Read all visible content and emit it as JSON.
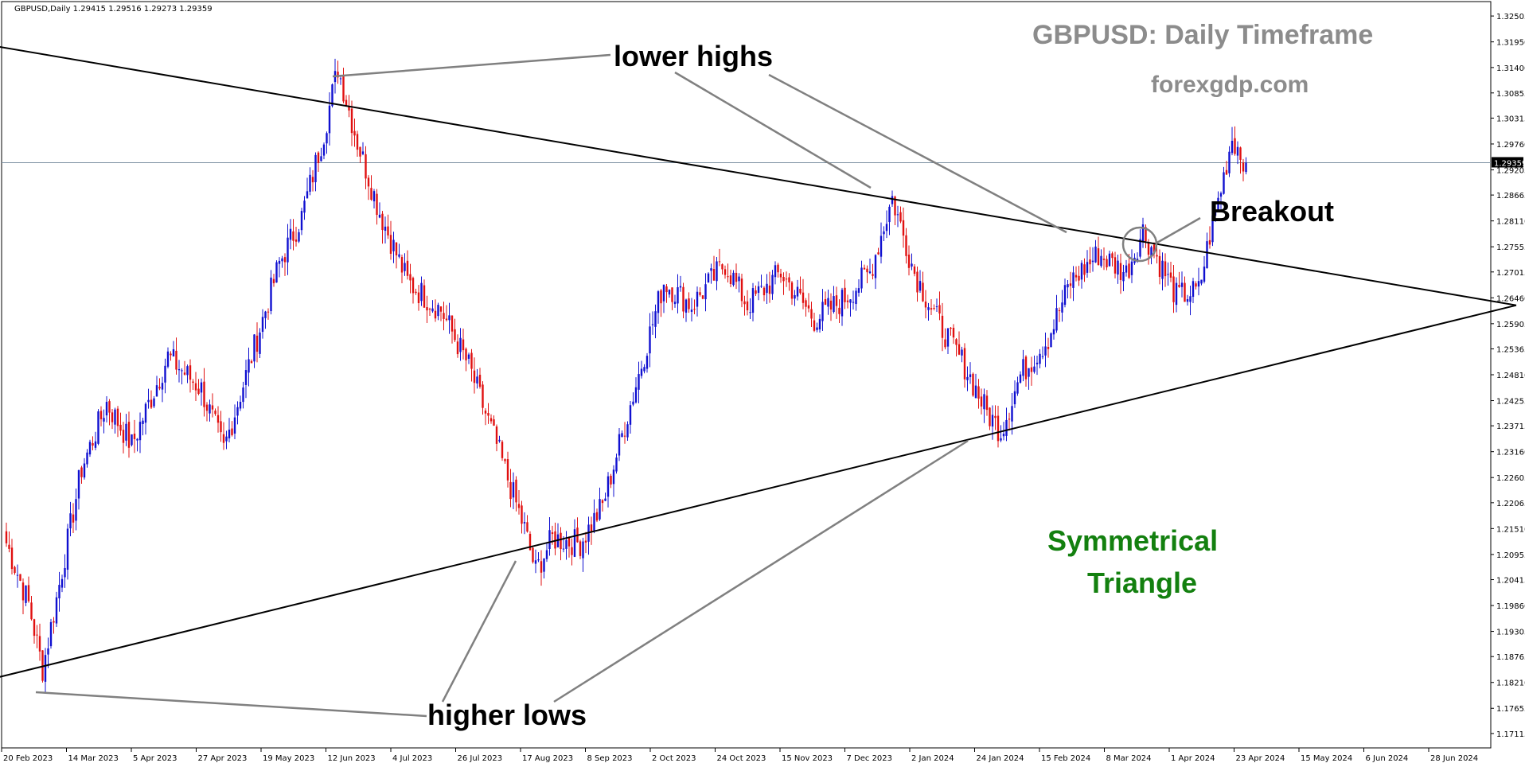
{
  "colors": {
    "bull": "#1010d0",
    "bear": "#e01010",
    "trendline": "#000000",
    "pointer": "#808080",
    "title": "#8c8c8c",
    "pattern_label": "#13800f",
    "current_line": "#7a8fa0"
  },
  "header": {
    "symbol_info": "GBPUSD,Daily  1.29415 1.29516 1.29273 1.29359"
  },
  "annotations": {
    "title": "GBPUSD: Daily Timeframe",
    "site": "forexgdp.com",
    "lower_highs": "lower highs",
    "higher_lows": "higher lows",
    "breakout": "Breakout",
    "pattern_line1": "Symmetrical",
    "pattern_line2": "Triangle"
  },
  "chart_data": {
    "type": "candlestick",
    "symbol": "GBPUSD",
    "timeframe": "Daily",
    "current_price": 1.29359,
    "ohlc_last": {
      "open": 1.29415,
      "high": 1.29516,
      "low": 1.29273,
      "close": 1.29359
    },
    "ylim": [
      1.1684,
      1.3278
    ],
    "y_ticks": [
      "1.32505",
      "1.31950",
      "1.31400",
      "1.30855",
      "1.30315",
      "1.29760",
      "1.29205",
      "1.28665",
      "1.28110",
      "1.27555",
      "1.27015",
      "1.26460",
      "1.25905",
      "1.25365",
      "1.24810",
      "1.24255",
      "1.23715",
      "1.23160",
      "1.22605",
      "1.22065",
      "1.21510",
      "1.20955",
      "1.20415",
      "1.19860",
      "1.19305",
      "1.18765",
      "1.18210",
      "1.17655",
      "1.17115"
    ],
    "x_ticks": [
      "20 Feb 2023",
      "14 Mar 2023",
      "5 Apr 2023",
      "27 Apr 2023",
      "19 May 2023",
      "12 Jun 2023",
      "4 Jul 2023",
      "26 Jul 2023",
      "17 Aug 2023",
      "8 Sep 2023",
      "2 Oct 2023",
      "24 Oct 2023",
      "15 Nov 2023",
      "7 Dec 2023",
      "2 Jan 2024",
      "24 Jan 2024",
      "15 Feb 2024",
      "8 Mar 2024",
      "1 Apr 2024",
      "23 Apr 2024",
      "15 May 2024",
      "6 Jun 2024",
      "28 Jun 2024"
    ],
    "price_path": [
      [
        0,
        1.212
      ],
      [
        8,
        1.199
      ],
      [
        13,
        1.185
      ],
      [
        18,
        1.2
      ],
      [
        27,
        1.228
      ],
      [
        36,
        1.242
      ],
      [
        45,
        1.233
      ],
      [
        58,
        1.252
      ],
      [
        70,
        1.245
      ],
      [
        78,
        1.232
      ],
      [
        90,
        1.256
      ],
      [
        98,
        1.272
      ],
      [
        106,
        1.282
      ],
      [
        114,
        1.3
      ],
      [
        119,
        1.314
      ],
      [
        126,
        1.298
      ],
      [
        134,
        1.283
      ],
      [
        144,
        1.268
      ],
      [
        156,
        1.262
      ],
      [
        166,
        1.25
      ],
      [
        176,
        1.233
      ],
      [
        186,
        1.215
      ],
      [
        190,
        1.206
      ],
      [
        196,
        1.213
      ],
      [
        206,
        1.212
      ],
      [
        214,
        1.22
      ],
      [
        220,
        1.233
      ],
      [
        226,
        1.246
      ],
      [
        236,
        1.268
      ],
      [
        246,
        1.263
      ],
      [
        258,
        1.272
      ],
      [
        266,
        1.263
      ],
      [
        278,
        1.27
      ],
      [
        290,
        1.26
      ],
      [
        300,
        1.264
      ],
      [
        310,
        1.27
      ],
      [
        318,
        1.286
      ],
      [
        326,
        1.27
      ],
      [
        334,
        1.26
      ],
      [
        344,
        1.25
      ],
      [
        352,
        1.24
      ],
      [
        357,
        1.236
      ],
      [
        364,
        1.248
      ],
      [
        374,
        1.256
      ],
      [
        382,
        1.268
      ],
      [
        392,
        1.274
      ],
      [
        402,
        1.27
      ],
      [
        408,
        1.279
      ],
      [
        414,
        1.272
      ],
      [
        420,
        1.265
      ],
      [
        428,
        1.266
      ],
      [
        432,
        1.278
      ],
      [
        436,
        1.288
      ],
      [
        440,
        1.299
      ],
      [
        445,
        1.2936
      ]
    ],
    "trendlines": [
      {
        "name": "upper",
        "from": [
          -8,
          1.319
        ],
        "to": [
          542,
          1.263
        ]
      },
      {
        "name": "lower",
        "from": [
          -18,
          1.181
        ],
        "to": [
          542,
          1.263
        ]
      }
    ]
  }
}
